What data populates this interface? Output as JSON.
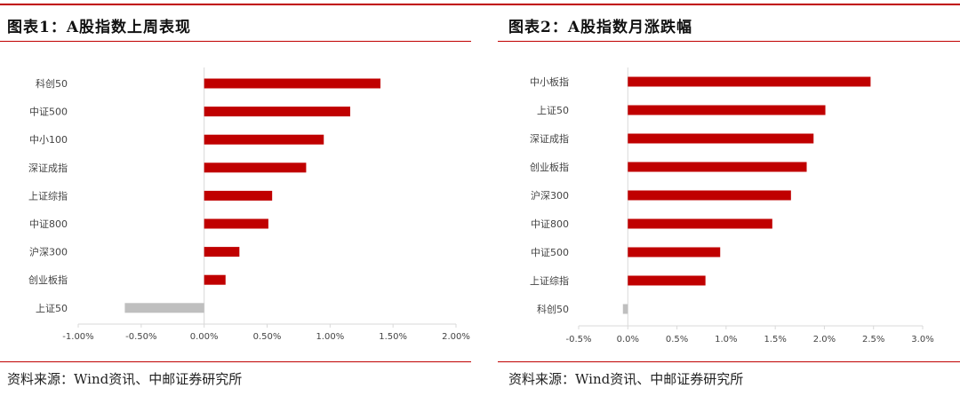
{
  "chart_data": [
    {
      "type": "bar",
      "orientation": "horizontal",
      "title": "图表1：A股指数上周表现",
      "source": "资料来源：Wind资讯、中邮证券研究所",
      "categories": [
        "科创50",
        "中证500",
        "中小100",
        "深证成指",
        "上证综指",
        "中证800",
        "沪深300",
        "创业板指",
        "上证50"
      ],
      "values": [
        1.4,
        1.16,
        0.95,
        0.81,
        0.54,
        0.51,
        0.28,
        0.17,
        -0.63
      ],
      "xlim": [
        -1.0,
        2.0
      ],
      "ticks": [
        "-1.00%",
        "-0.50%",
        "0.00%",
        "0.50%",
        "1.00%",
        "1.50%",
        "2.00%"
      ],
      "grid": false,
      "positive_color": "#c00000",
      "negative_color": "#bfbfbf"
    },
    {
      "type": "bar",
      "orientation": "horizontal",
      "title": "图表2：A股指数月涨跌幅",
      "source": "资料来源：Wind资讯、中邮证券研究所",
      "categories": [
        "中小板指",
        "上证50",
        "深证成指",
        "创业板指",
        "沪深300",
        "中证800",
        "中证500",
        "上证综指",
        "科创50"
      ],
      "values": [
        2.47,
        2.01,
        1.89,
        1.82,
        1.66,
        1.47,
        0.94,
        0.79,
        -0.05
      ],
      "xlim": [
        -0.5,
        3.0
      ],
      "ticks": [
        "-0.5%",
        "0.0%",
        "0.5%",
        "1.0%",
        "1.5%",
        "2.0%",
        "2.5%",
        "3.0%"
      ],
      "grid": false,
      "positive_color": "#c00000",
      "negative_color": "#bfbfbf"
    }
  ]
}
